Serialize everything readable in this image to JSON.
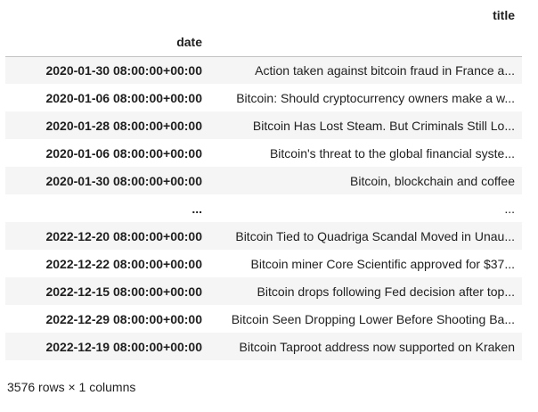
{
  "table": {
    "columns": [
      "title"
    ],
    "index_name": "date",
    "rows": [
      {
        "date": "2020-01-30 08:00:00+00:00",
        "title": "Action taken against bitcoin fraud in France a..."
      },
      {
        "date": "2020-01-06 08:00:00+00:00",
        "title": "Bitcoin: Should cryptocurrency owners make a w..."
      },
      {
        "date": "2020-01-28 08:00:00+00:00",
        "title": "Bitcoin Has Lost Steam. But Criminals Still Lo..."
      },
      {
        "date": "2020-01-06 08:00:00+00:00",
        "title": "Bitcoin's threat to the global financial syste..."
      },
      {
        "date": "2020-01-30 08:00:00+00:00",
        "title": "Bitcoin, blockchain and coffee"
      },
      {
        "date": "...",
        "title": "..."
      },
      {
        "date": "2022-12-20 08:00:00+00:00",
        "title": "Bitcoin Tied to Quadriga Scandal Moved in Unau..."
      },
      {
        "date": "2022-12-22 08:00:00+00:00",
        "title": "Bitcoin miner Core Scientific approved for $37..."
      },
      {
        "date": "2022-12-15 08:00:00+00:00",
        "title": "Bitcoin drops following Fed decision after top..."
      },
      {
        "date": "2022-12-29 08:00:00+00:00",
        "title": "Bitcoin Seen Dropping Lower Before Shooting Ba..."
      },
      {
        "date": "2022-12-19 08:00:00+00:00",
        "title": "Bitcoin Taproot address now supported on Kraken"
      }
    ]
  },
  "footer": {
    "shape_text": "3576 rows × 1 columns"
  }
}
